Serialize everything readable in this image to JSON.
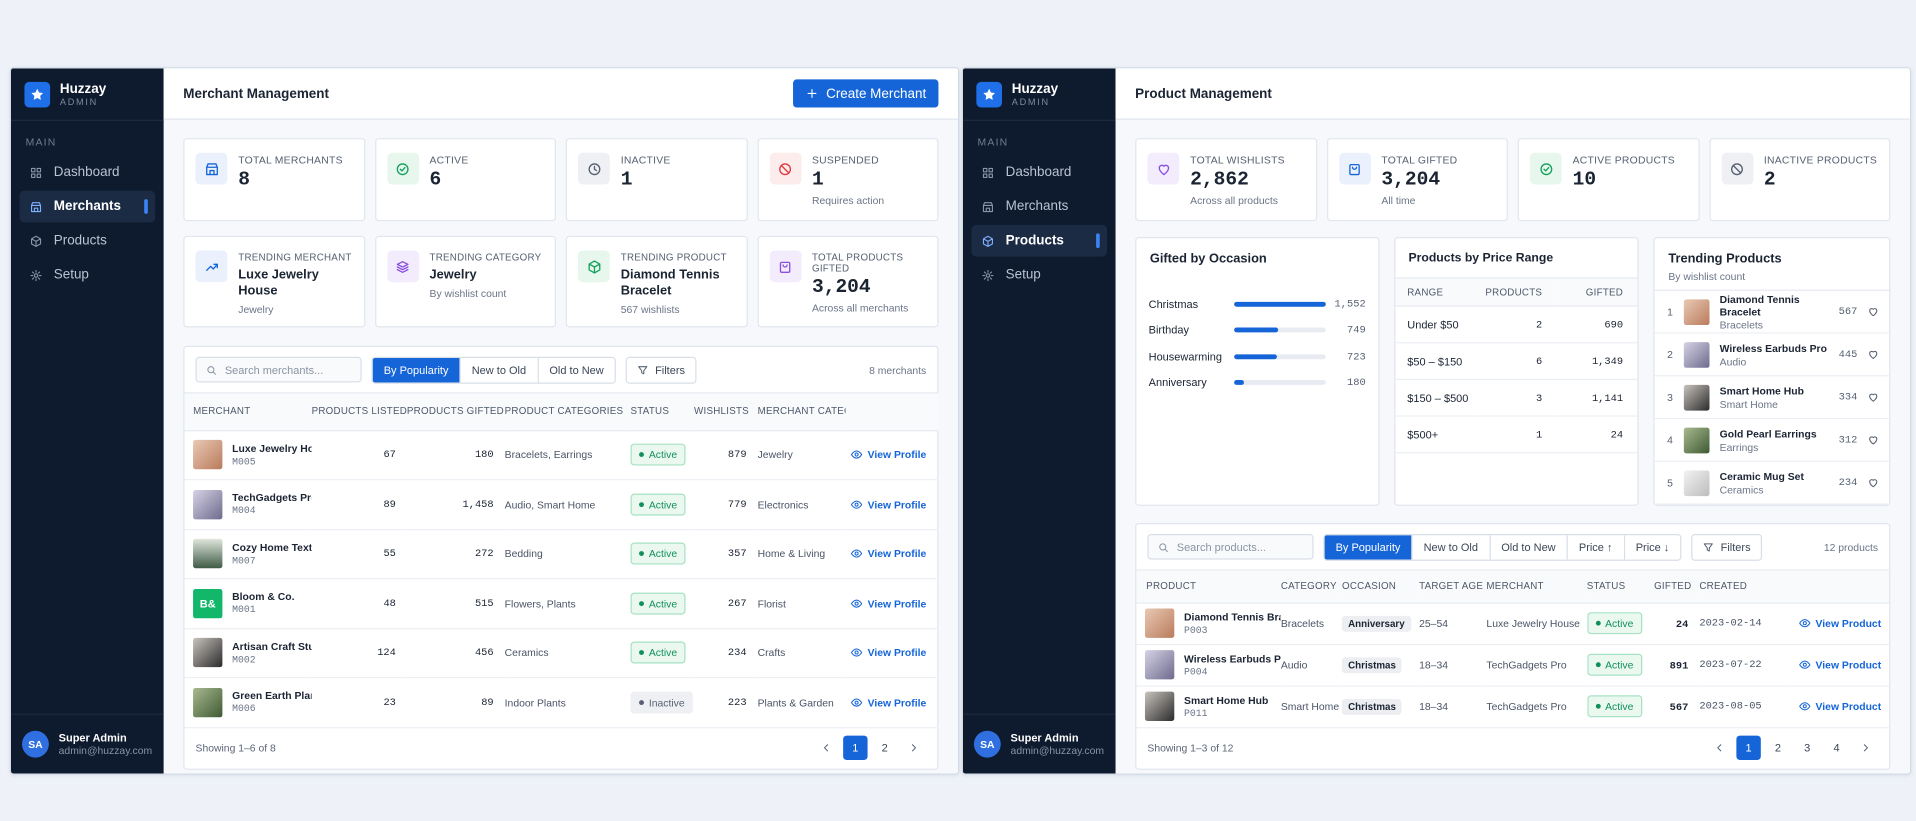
{
  "sidebar": {
    "brand": "Huzzay",
    "brand_sub": "ADMIN",
    "section": "MAIN",
    "nav": [
      "Dashboard",
      "Merchants",
      "Products",
      "Setup"
    ],
    "user": {
      "initials": "SA",
      "name": "Super Admin",
      "email": "admin@huzzay.com"
    }
  },
  "merchants": {
    "title": "Merchant Management",
    "create_button": "Create Merchant",
    "stats": [
      {
        "label": "TOTAL MERCHANTS",
        "value": "8"
      },
      {
        "label": "ACTIVE",
        "value": "6"
      },
      {
        "label": "INACTIVE",
        "value": "1"
      },
      {
        "label": "SUSPENDED",
        "value": "1",
        "note": "Requires action"
      }
    ],
    "highlights": [
      {
        "label": "TRENDING MERCHANT",
        "value": "Luxe Jewelry House",
        "note": "Jewelry"
      },
      {
        "label": "TRENDING CATEGORY",
        "value": "Jewelry",
        "note": "By wishlist count"
      },
      {
        "label": "TRENDING PRODUCT",
        "value": "Diamond Tennis Bracelet",
        "note": "567 wishlists"
      },
      {
        "label": "TOTAL PRODUCTS GIFTED",
        "value": "3,204",
        "note": "Across all merchants"
      }
    ],
    "search_placeholder": "Search merchants...",
    "sort_options": [
      "By Popularity",
      "New to Old",
      "Old to New"
    ],
    "filters": "Filters",
    "count": "8 merchants",
    "columns": [
      "MERCHANT",
      "PRODUCTS LISTED",
      "PRODUCTS GIFTED",
      "PRODUCT CATEGORIES",
      "STATUS",
      "WISHLISTS",
      "MERCHANT CATEGORY"
    ],
    "rows": [
      {
        "name": "Luxe Jewelry House",
        "id": "M005",
        "products_listed": "67",
        "products_gifted": "180",
        "categories": "Bracelets, Earrings",
        "status": "Active",
        "wishlists": "879",
        "category": "Jewelry",
        "action": "View Profile"
      },
      {
        "name": "TechGadgets Pro",
        "id": "M004",
        "products_listed": "89",
        "products_gifted": "1,458",
        "categories": "Audio, Smart Home",
        "status": "Active",
        "wishlists": "779",
        "category": "Electronics",
        "action": "View Profile"
      },
      {
        "name": "Cozy Home Textiles",
        "id": "M007",
        "products_listed": "55",
        "products_gifted": "272",
        "categories": "Bedding",
        "status": "Active",
        "wishlists": "357",
        "category": "Home & Living",
        "action": "View Profile"
      },
      {
        "name": "Bloom & Co.",
        "id": "M001",
        "avatar_text": "B&",
        "products_listed": "48",
        "products_gifted": "515",
        "categories": "Flowers, Plants",
        "status": "Active",
        "wishlists": "267",
        "category": "Florist",
        "action": "View Profile"
      },
      {
        "name": "Artisan Craft Studio",
        "id": "M002",
        "products_listed": "124",
        "products_gifted": "456",
        "categories": "Ceramics",
        "status": "Active",
        "wishlists": "234",
        "category": "Crafts",
        "action": "View Profile"
      },
      {
        "name": "Green Earth Plants",
        "id": "M006",
        "products_listed": "23",
        "products_gifted": "89",
        "categories": "Indoor Plants",
        "status": "Inactive",
        "wishlists": "223",
        "category": "Plants & Garden",
        "action": "View Profile"
      }
    ],
    "footer": "Showing 1–6 of 8",
    "pages": [
      "1",
      "2"
    ]
  },
  "products": {
    "title": "Product Management",
    "stats": [
      {
        "label": "TOTAL WISHLISTS",
        "value": "2,862",
        "note": "Across all products"
      },
      {
        "label": "TOTAL GIFTED",
        "value": "3,204",
        "note": "All time"
      },
      {
        "label": "ACTIVE PRODUCTS",
        "value": "10"
      },
      {
        "label": "INACTIVE PRODUCTS",
        "value": "2"
      }
    ],
    "price_range": {
      "title": "Products by Price Range",
      "columns": [
        "RANGE",
        "PRODUCTS",
        "GIFTED"
      ],
      "rows": [
        [
          "Under $50",
          "2",
          "690"
        ],
        [
          "$50 – $150",
          "6",
          "1,349"
        ],
        [
          "$150 – $500",
          "3",
          "1,141"
        ],
        [
          "$500+",
          "1",
          "24"
        ]
      ]
    },
    "trending": {
      "title": "Trending Products",
      "subtitle": "By wishlist count",
      "items": [
        {
          "rank": "1",
          "name": "Diamond Tennis Bracelet",
          "category": "Bracelets",
          "count": "567"
        },
        {
          "rank": "2",
          "name": "Wireless Earbuds Pro",
          "category": "Audio",
          "count": "445"
        },
        {
          "rank": "3",
          "name": "Smart Home Hub",
          "category": "Smart Home",
          "count": "334"
        },
        {
          "rank": "4",
          "name": "Gold Pearl Earrings",
          "category": "Earrings",
          "count": "312"
        },
        {
          "rank": "5",
          "name": "Ceramic Mug Set",
          "category": "Ceramics",
          "count": "234"
        }
      ]
    },
    "search_placeholder": "Search products...",
    "sort_options": [
      "By Popularity",
      "New to Old",
      "Old to New",
      "Price ↑",
      "Price ↓"
    ],
    "filters": "Filters",
    "count": "12 products",
    "columns": [
      "PRODUCT",
      "CATEGORY",
      "OCCASION",
      "TARGET AGE",
      "MERCHANT",
      "STATUS",
      "GIFTED",
      "CREATED"
    ],
    "rows": [
      {
        "name": "Diamond Tennis Bracelet",
        "id": "P003",
        "category": "Bracelets",
        "occasion": "Anniversary",
        "target_age": "25–54",
        "merchant": "Luxe Jewelry House",
        "status": "Active",
        "gifted": "24",
        "created": "2023-02-14",
        "action": "View Product"
      },
      {
        "name": "Wireless Earbuds Pro",
        "id": "P004",
        "category": "Audio",
        "occasion": "Christmas",
        "target_age": "18–34",
        "merchant": "TechGadgets Pro",
        "status": "Active",
        "gifted": "891",
        "created": "2023-07-22",
        "action": "View Product"
      },
      {
        "name": "Smart Home Hub",
        "id": "P011",
        "category": "Smart Home",
        "occasion": "Christmas",
        "target_age": "18–34",
        "merchant": "TechGadgets Pro",
        "status": "Active",
        "gifted": "567",
        "created": "2023-08-05",
        "action": "View Product"
      }
    ],
    "footer": "Showing 1–3 of 12",
    "pages": [
      "1",
      "2",
      "3",
      "4"
    ]
  },
  "chart_data": {
    "type": "bar",
    "title": "Gifted by Occasion",
    "categories": [
      "Christmas",
      "Birthday",
      "Housewarming",
      "Anniversary"
    ],
    "values": [
      1552,
      749,
      723,
      180
    ],
    "value_labels": [
      "1,552",
      "749",
      "723",
      "180"
    ],
    "color": "#1565d8"
  }
}
